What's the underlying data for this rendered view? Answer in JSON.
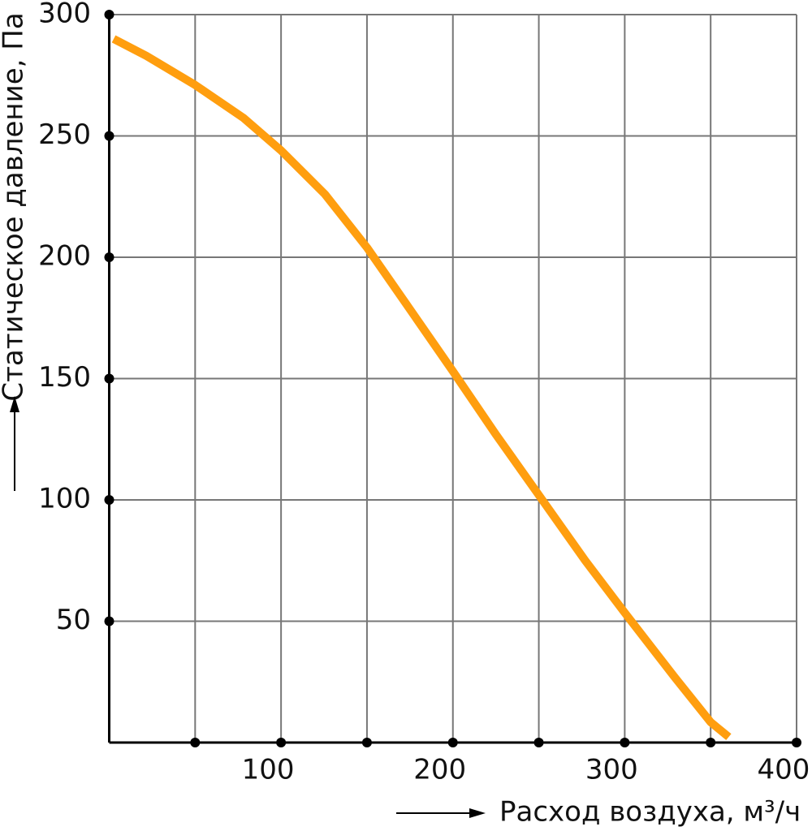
{
  "chart_data": {
    "type": "line",
    "y_label": "Статическое давление, Па",
    "x_label": "Расход воздуха, м³/ч",
    "xlim": [
      0,
      400
    ],
    "ylim": [
      0,
      300
    ],
    "xticks": [
      100,
      200,
      300,
      400
    ],
    "xminorticks": [
      50,
      150,
      250,
      350
    ],
    "yticks": [
      50,
      100,
      150,
      200,
      250,
      300
    ],
    "grid": true,
    "series": [
      {
        "color": "#ff9e0f",
        "x": [
          2.6,
          21.6,
          50,
          78,
          100,
          125.5,
          150,
          173,
          200,
          225,
          250,
          277,
          300,
          329,
          350,
          360.5
        ],
        "values": [
          290,
          283,
          271,
          257.5,
          244,
          226,
          204,
          180.6,
          153,
          127,
          102,
          75,
          53.5,
          27,
          8.4,
          2.3
        ]
      }
    ]
  }
}
